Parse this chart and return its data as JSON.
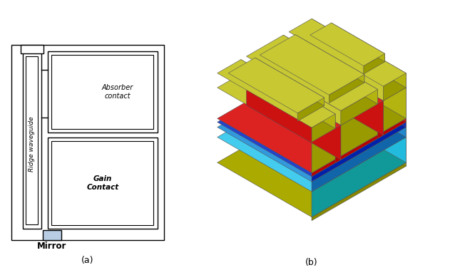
{
  "fig_width": 6.38,
  "fig_height": 3.93,
  "dpi": 100,
  "label_a": "(a)",
  "label_b": "(b)",
  "text_mirror": "Mirror",
  "text_ridge": "Ridge waveguide",
  "text_absorber": "Absorber\ncontact",
  "text_gain": "Gain\nContact",
  "bg_color": "#ffffff",
  "schematic_border": "#000000",
  "mirror_color": "#b8cce4",
  "col_yellow_top": "#c8c832",
  "col_yellow_left": "#999900",
  "col_yellow_right": "#b4b410",
  "col_red_top": "#dd2222",
  "col_red_left": "#bb0000",
  "col_red_right": "#cc1111",
  "col_dkblue_top": "#2244cc",
  "col_dkblue_left": "#0022aa",
  "col_dkblue_right": "#1133bb",
  "col_blue_top": "#3399dd",
  "col_blue_left": "#1166aa",
  "col_blue_right": "#2288cc",
  "col_cyan_top": "#44ccee",
  "col_cyan_left": "#119999",
  "col_cyan_right": "#22bbdd",
  "col_base_top": "#aaaa00",
  "col_base_left": "#888800",
  "col_base_right": "#999900",
  "ox": 5.0,
  "oy": 1.8,
  "scale": 0.72
}
